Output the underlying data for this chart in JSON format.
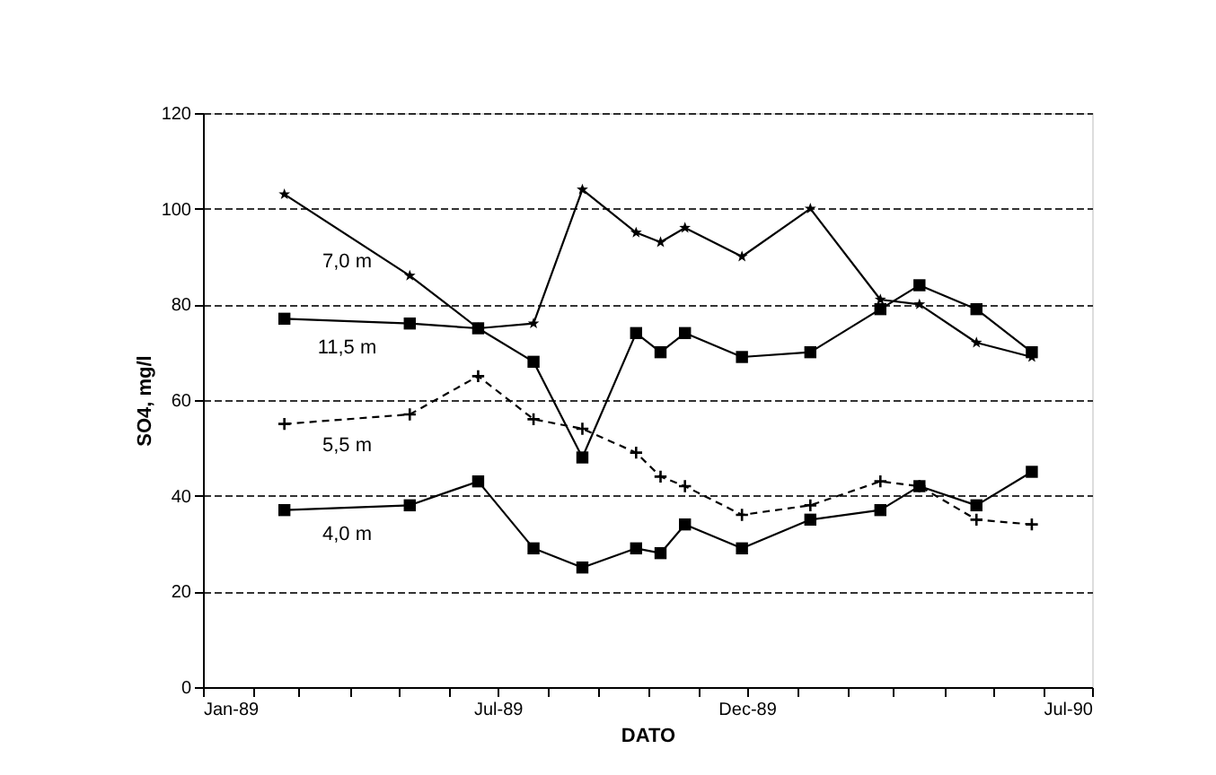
{
  "chart_data": {
    "type": "line",
    "xlabel": "DATO",
    "ylabel": "SO4, mg/l",
    "x": [
      "1989-02-20",
      "1989-05-08",
      "1989-06-19",
      "1989-07-23",
      "1989-08-22",
      "1989-09-24",
      "1989-10-09",
      "1989-10-24",
      "1989-11-28",
      "1990-01-09",
      "1990-02-21",
      "1990-03-17",
      "1990-04-21",
      "1990-05-25"
    ],
    "series": [
      {
        "name": "7,0 m",
        "color": "#000000",
        "marker": "star",
        "line_style": "solid",
        "values": [
          103,
          86,
          75,
          76,
          104,
          95,
          93,
          96,
          90,
          100,
          81,
          80,
          72,
          69
        ]
      },
      {
        "name": "11,5 m",
        "color": "#000000",
        "marker": "square",
        "line_style": "solid",
        "values": [
          77,
          76,
          75,
          68,
          48,
          74,
          70,
          74,
          69,
          70,
          79,
          84,
          79,
          70
        ]
      },
      {
        "name": "5,5 m",
        "color": "#000000",
        "marker": "cross",
        "line_style": "dashed",
        "values": [
          55,
          57,
          65,
          56,
          54,
          49,
          44,
          42,
          36,
          38,
          43,
          42,
          35,
          34
        ]
      },
      {
        "name": "4,0 m",
        "color": "#000000",
        "marker": "square",
        "line_style": "solid",
        "values": [
          37,
          38,
          43,
          29,
          25,
          29,
          28,
          34,
          29,
          35,
          37,
          42,
          38,
          45
        ]
      }
    ],
    "ylim": [
      0,
      120
    ],
    "yticks": [
      0,
      20,
      40,
      60,
      80,
      100,
      120
    ],
    "xlim": [
      "1989-01-01",
      "1990-07-01"
    ],
    "xticks": [
      {
        "value": "1989-01-01",
        "label": "Jan-89"
      },
      {
        "value": "1989-02-01",
        "label": null
      },
      {
        "value": "1989-03-01",
        "label": null
      },
      {
        "value": "1989-04-01",
        "label": null
      },
      {
        "value": "1989-05-01",
        "label": null
      },
      {
        "value": "1989-06-01",
        "label": null
      },
      {
        "value": "1989-07-01",
        "label": "Jul-89"
      },
      {
        "value": "1989-08-01",
        "label": null
      },
      {
        "value": "1989-09-01",
        "label": null
      },
      {
        "value": "1989-10-01",
        "label": null
      },
      {
        "value": "1989-11-01",
        "label": null
      },
      {
        "value": "1989-12-01",
        "label": "Dec-89"
      },
      {
        "value": "1990-01-01",
        "label": null
      },
      {
        "value": "1990-02-01",
        "label": null
      },
      {
        "value": "1990-03-01",
        "label": null
      },
      {
        "value": "1990-04-01",
        "label": null
      },
      {
        "value": "1990-05-01",
        "label": null
      },
      {
        "value": "1990-06-01",
        "label": null
      },
      {
        "value": "1990-07-01",
        "label": "Jul-90"
      }
    ],
    "grid": "y"
  }
}
